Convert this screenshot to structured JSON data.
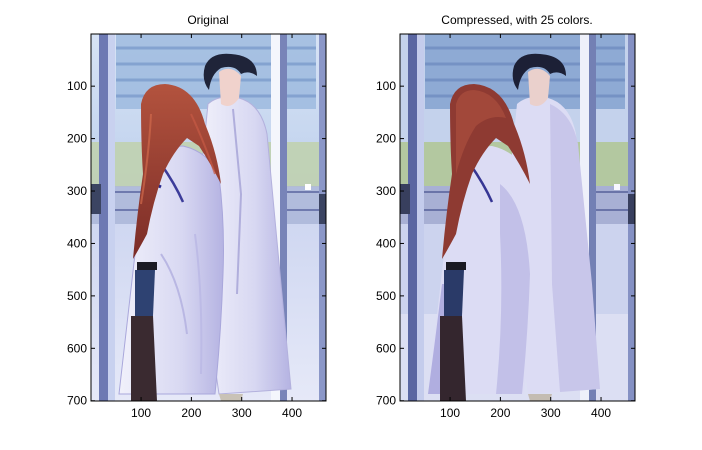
{
  "chart_data": [
    {
      "type": "image",
      "title": "Original",
      "xticks": [
        100,
        200,
        300,
        400
      ],
      "yticks": [
        100,
        200,
        300,
        400,
        500,
        600,
        700
      ],
      "xlim": [
        0.5,
        467.5
      ],
      "ylim": [
        0.5,
        700.5
      ],
      "y_reversed": true,
      "grid": false,
      "colors": {
        "sky": "#c9d8f0",
        "building": "#8fb0d8",
        "window_frame": "#5f6fa8",
        "greenery": "#b9cfa6",
        "floor": "#dde2f4",
        "coat": "#e2e3f6",
        "coat_shade": "#b8b6e4",
        "hair_red": "#9c3e2f",
        "hair_dark": "#1e2238",
        "skin": "#f1d5cf",
        "shorts": "#2d3f6e",
        "stockings": "#3a2a30"
      }
    },
    {
      "type": "image",
      "title": "Compressed, with 25 colors.",
      "xticks": [
        100,
        200,
        300,
        400
      ],
      "yticks": [
        100,
        200,
        300,
        400,
        500,
        600,
        700
      ],
      "xlim": [
        0.5,
        467.5
      ],
      "ylim": [
        0.5,
        700.5
      ],
      "y_reversed": true,
      "grid": false,
      "colors": {
        "sky": "#c4d2ec",
        "building": "#88a6d2",
        "window_frame": "#5a66a2",
        "greenery": "#b3c8a0",
        "floor": "#d8dcf2",
        "coat": "#dcdcf4",
        "coat_shade": "#b0aee0",
        "hair_red": "#8e3a32",
        "hair_dark": "#1c2036",
        "skin": "#ead0cc",
        "shorts": "#2a3a68",
        "stockings": "#34262e"
      }
    }
  ]
}
